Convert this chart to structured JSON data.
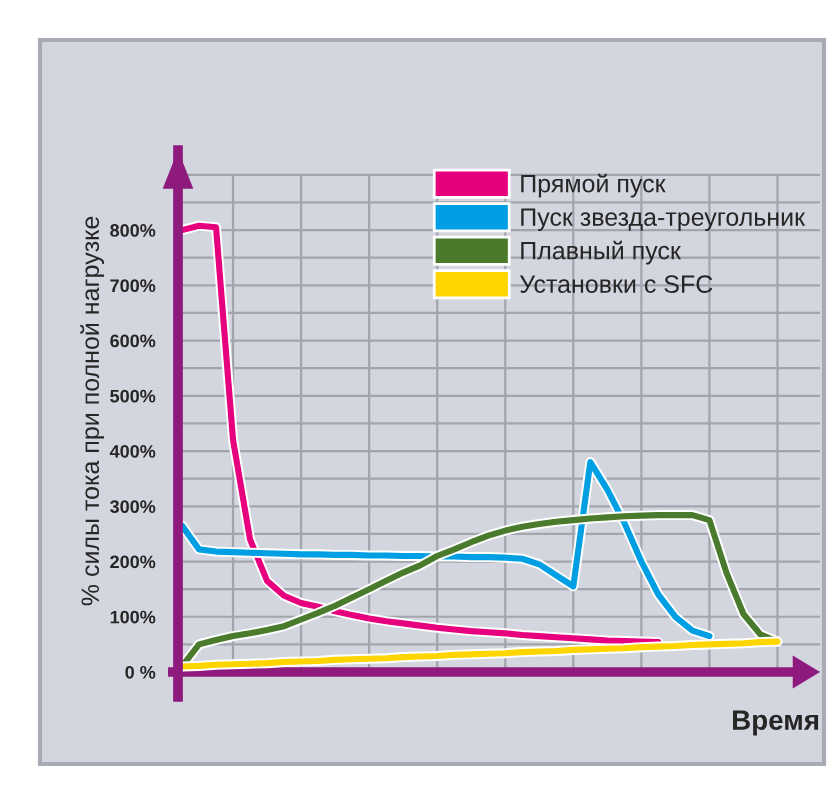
{
  "chart_data": {
    "type": "line",
    "ylabel": "% силы тока при полной нагрузке",
    "xlabel": "Время",
    "categories": [
      null,
      null,
      null,
      null,
      null,
      null,
      null,
      null,
      null,
      null,
      null,
      null,
      null,
      null,
      null,
      null,
      null,
      null,
      null,
      null,
      null,
      null,
      null,
      null,
      null,
      null,
      null,
      null,
      null,
      null,
      null,
      null,
      null,
      null,
      null,
      null
    ],
    "series": [
      {
        "name": "Прямой пуск",
        "color": "#e6007e",
        "values": [
          800,
          808,
          805,
          420,
          240,
          165,
          138,
          125,
          118,
          110,
          103,
          97,
          92,
          88,
          84,
          80,
          77,
          74,
          72,
          70,
          67,
          65,
          63,
          61,
          59,
          57,
          56,
          55,
          54,
          null,
          null,
          null,
          null,
          null,
          null,
          null
        ]
      },
      {
        "name": "Пуск звезда-треугольник",
        "color": "#009fe3",
        "values": [
          265,
          222,
          218,
          217,
          216,
          215,
          214,
          213,
          213,
          212,
          212,
          211,
          211,
          210,
          210,
          209,
          209,
          208,
          208,
          207,
          205,
          195,
          175,
          155,
          380,
          330,
          270,
          200,
          140,
          100,
          75,
          65,
          null,
          null,
          null,
          null
        ]
      },
      {
        "name": "Плавный пуск",
        "color": "#4a7a2c",
        "values": [
          10,
          50,
          58,
          65,
          70,
          76,
          83,
          95,
          107,
          120,
          135,
          150,
          165,
          180,
          193,
          210,
          222,
          235,
          247,
          256,
          263,
          268,
          272,
          275,
          278,
          280,
          282,
          283,
          284,
          284,
          284,
          275,
          180,
          105,
          68,
          55
        ]
      },
      {
        "name": "Установки с SFC",
        "color": "#ffd500",
        "values": [
          10,
          11,
          13,
          14,
          15,
          16,
          18,
          19,
          20,
          22,
          23,
          24,
          25,
          27,
          28,
          29,
          31,
          32,
          33,
          34,
          36,
          37,
          38,
          40,
          41,
          42,
          43,
          45,
          46,
          47,
          49,
          50,
          51,
          52,
          54,
          55
        ]
      }
    ],
    "ylim": [
      0,
      945
    ],
    "yticks": [
      {
        "value": 0,
        "label": "0 %"
      },
      {
        "value": 50,
        "label": null
      },
      {
        "value": 100,
        "label": "100%"
      },
      {
        "value": 150,
        "label": null
      },
      {
        "value": 200,
        "label": "200%"
      },
      {
        "value": 250,
        "label": null
      },
      {
        "value": 300,
        "label": "300%"
      },
      {
        "value": 350,
        "label": null
      },
      {
        "value": 400,
        "label": "400%"
      },
      {
        "value": 450,
        "label": null
      },
      {
        "value": 500,
        "label": "500%"
      },
      {
        "value": 550,
        "label": null
      },
      {
        "value": 600,
        "label": "600%"
      },
      {
        "value": 650,
        "label": null
      },
      {
        "value": 700,
        "label": "700%"
      },
      {
        "value": 750,
        "label": null
      },
      {
        "value": 800,
        "label": "800%"
      },
      {
        "value": 850,
        "label": null
      },
      {
        "value": 900,
        "label": null
      }
    ],
    "grid": true,
    "legend": "top right",
    "marker": "none",
    "line_style": "solid"
  }
}
